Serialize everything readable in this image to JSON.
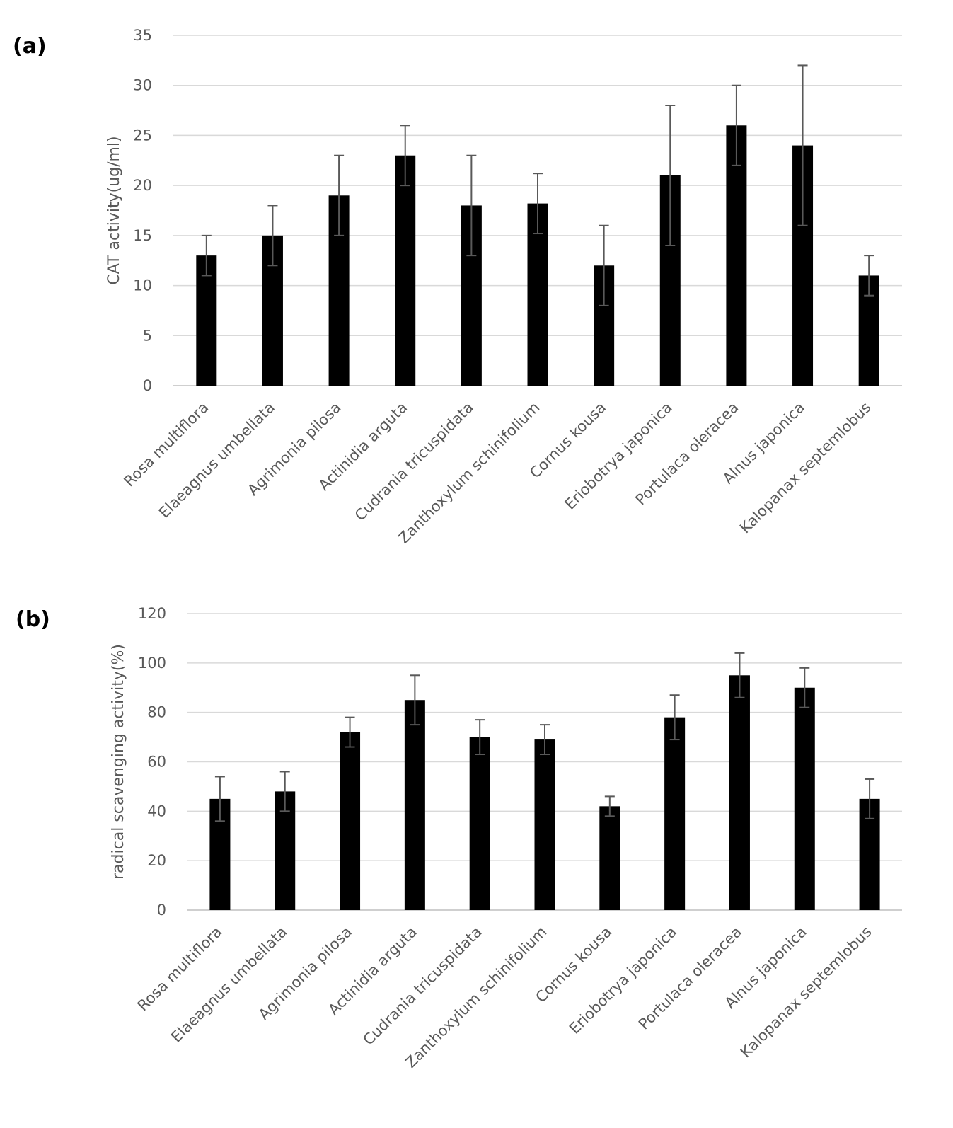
{
  "chart_data": [
    {
      "panel_label": "(a)",
      "type": "bar",
      "title": "",
      "xlabel": "",
      "ylabel": "CAT activity(ug/ml)",
      "ylim": [
        0,
        35
      ],
      "yticks": [
        0,
        5,
        10,
        15,
        20,
        25,
        30,
        35
      ],
      "grid": true,
      "categories": [
        "Rosa multiflora",
        "Elaeagnus umbellata",
        "Agrimonia pilosa",
        "Actinidia arguta",
        "Cudrania tricuspidata",
        "Zanthoxylum schinifolium",
        "Cornus kousa",
        "Eriobotrya japonica",
        "Portulaca oleracea",
        "Alnus japonica",
        "Kalopanax septemlobus"
      ],
      "values": [
        13,
        15,
        19,
        23,
        18,
        18.2,
        12,
        21,
        26,
        24,
        11
      ],
      "errors": [
        2,
        3,
        4,
        3,
        5,
        3,
        4,
        7,
        4,
        8,
        2
      ],
      "bar_color": "#000000",
      "error_color": "#595959"
    },
    {
      "panel_label": "(b)",
      "type": "bar",
      "title": "",
      "xlabel": "",
      "ylabel": "radical scavenging activity(%)",
      "ylim": [
        0,
        120
      ],
      "yticks": [
        0,
        20,
        40,
        60,
        80,
        100,
        120
      ],
      "grid": true,
      "categories": [
        "Rosa multiflora",
        "Elaeagnus umbellata",
        "Agrimonia pilosa",
        "Actinidia arguta",
        "Cudrania tricuspidata",
        "Zanthoxylum schinifolium",
        "Cornus kousa",
        "Eriobotrya japonica",
        "Portulaca oleracea",
        "Alnus japonica",
        "Kalopanax septemlobus"
      ],
      "values": [
        45,
        48,
        72,
        85,
        70,
        69,
        42,
        78,
        95,
        90,
        45
      ],
      "errors": [
        9,
        8,
        6,
        10,
        7,
        6,
        4,
        9,
        9,
        8,
        8
      ],
      "bar_color": "#000000",
      "error_color": "#595959"
    }
  ]
}
